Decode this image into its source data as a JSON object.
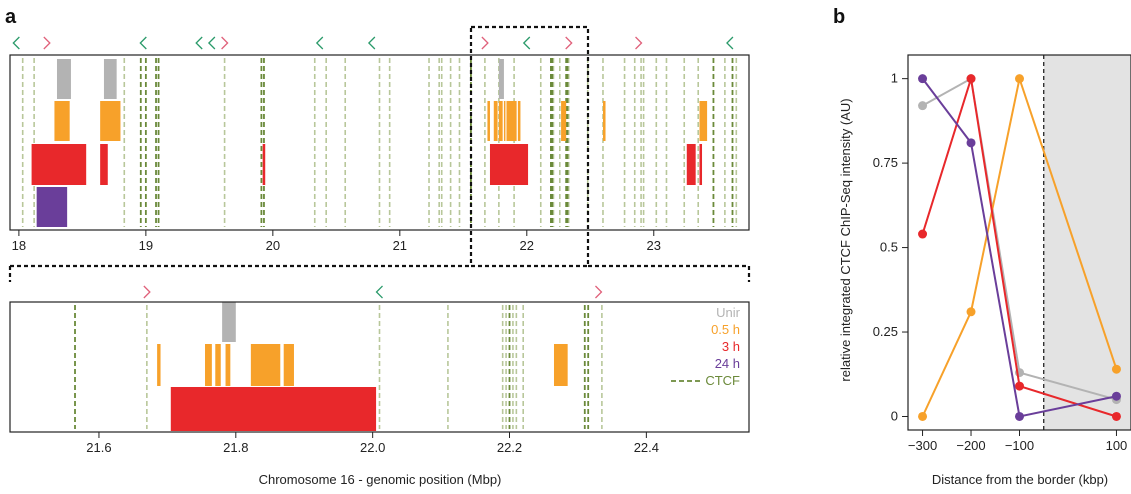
{
  "panel_labels": [
    "a",
    "b"
  ],
  "colors": {
    "unir": "#b3b3b3",
    "h05": "#f7a12a",
    "h3": "#e8282b",
    "h24": "#6a3e9a",
    "ctcf": "#6b8a3a",
    "ctcf_light": "#b8c79a",
    "arrow_left": "#2a9a6a",
    "arrow_right": "#e0607a",
    "shade": "#e3e3e3"
  },
  "chart_data": [
    {
      "type": "track",
      "panel": "a-top",
      "xlabel": "",
      "xlim": [
        17.93,
        23.75
      ],
      "xticks": [
        "18",
        "19",
        "20",
        "21",
        "22",
        "23"
      ],
      "arrows": [
        {
          "pos": 17.98,
          "dir": "left"
        },
        {
          "pos": 18.22,
          "dir": "right"
        },
        {
          "pos": 18.98,
          "dir": "left"
        },
        {
          "pos": 19.42,
          "dir": "left"
        },
        {
          "pos": 19.52,
          "dir": "left"
        },
        {
          "pos": 19.62,
          "dir": "right"
        },
        {
          "pos": 20.37,
          "dir": "left"
        },
        {
          "pos": 20.78,
          "dir": "left"
        },
        {
          "pos": 21.67,
          "dir": "right"
        },
        {
          "pos": 22.0,
          "dir": "left"
        },
        {
          "pos": 22.33,
          "dir": "right"
        },
        {
          "pos": 22.88,
          "dir": "right"
        },
        {
          "pos": 23.6,
          "dir": "left"
        }
      ],
      "ctcf_strong": [
        18.96,
        19.0,
        19.08,
        19.1,
        19.91,
        19.93,
        21.56,
        22.19,
        22.2,
        22.31,
        22.32,
        23.47,
        23.62
      ],
      "ctcf_weak": [
        18.03,
        18.12,
        18.83,
        19.62,
        20.33,
        20.42,
        20.57,
        20.84,
        20.92,
        21.23,
        21.31,
        21.33,
        21.4,
        21.47,
        21.67,
        21.78,
        21.9,
        22.11,
        22.21,
        22.26,
        22.33,
        22.48,
        22.6,
        22.77,
        22.85,
        22.9,
        22.92,
        23.02,
        23.1,
        23.24,
        23.35,
        23.56,
        23.65
      ],
      "tracks": {
        "unir": [
          [
            18.3,
            18.41
          ],
          [
            18.67,
            18.77
          ],
          [
            21.78,
            21.82
          ]
        ],
        "h05": [
          [
            18.28,
            18.4
          ],
          [
            18.64,
            18.8
          ],
          [
            21.69,
            21.71
          ],
          [
            21.74,
            21.77
          ],
          [
            21.78,
            21.81
          ],
          [
            21.82,
            21.83
          ],
          [
            21.84,
            21.92
          ],
          [
            21.93,
            21.95
          ],
          [
            22.27,
            22.31
          ],
          [
            22.6,
            22.62
          ],
          [
            23.36,
            23.42
          ]
        ],
        "h3": [
          [
            18.1,
            18.53
          ],
          [
            18.64,
            18.7
          ],
          [
            19.92,
            19.94
          ],
          [
            21.71,
            22.01
          ],
          [
            23.26,
            23.33
          ],
          [
            23.36,
            23.38
          ]
        ],
        "h24": [
          [
            18.14,
            18.38
          ]
        ]
      }
    },
    {
      "type": "track",
      "panel": "a-zoom",
      "xlabel": "Chromosome 16 - genomic position (Mbp)",
      "xlim": [
        21.47,
        22.55
      ],
      "xticks": [
        "21.6",
        "21.8",
        "22.0",
        "22.2",
        "22.4"
      ],
      "arrows": [
        {
          "pos": 21.67,
          "dir": "right"
        },
        {
          "pos": 22.01,
          "dir": "left"
        },
        {
          "pos": 22.33,
          "dir": "right"
        }
      ],
      "ctcf_strong": [
        21.565,
        22.2,
        22.31,
        22.315
      ],
      "ctcf_weak": [
        21.67,
        22.01,
        22.11,
        22.19,
        22.195,
        22.205,
        22.21,
        22.22,
        22.335
      ],
      "tracks": {
        "unir": [
          [
            21.78,
            21.8
          ]
        ],
        "h05": [
          [
            21.685,
            21.69
          ],
          [
            21.755,
            21.765
          ],
          [
            21.77,
            21.778
          ],
          [
            21.785,
            21.792
          ],
          [
            21.822,
            21.865
          ],
          [
            21.87,
            21.885
          ],
          [
            22.265,
            22.285
          ]
        ],
        "h3": [
          [
            21.705,
            22.005
          ]
        ],
        "h24": []
      },
      "legend": [
        {
          "label": "Unir",
          "key": "unir"
        },
        {
          "label": "0.5 h",
          "key": "h05"
        },
        {
          "label": "3 h",
          "key": "h3"
        },
        {
          "label": "24 h",
          "key": "h24"
        },
        {
          "label": "CTCF",
          "key": "ctcf"
        }
      ]
    },
    {
      "type": "line",
      "panel": "b",
      "xlabel": "Distance from the border (kbp)",
      "ylabel": "relative integrated CTCF ChIP-Seq intensity (AU)",
      "xlim": [
        -330,
        130
      ],
      "ylim": [
        -0.04,
        1.07
      ],
      "xticks": [
        "-300",
        "-200",
        "-100",
        "100"
      ],
      "xtick_values": [
        -300,
        -200,
        -100,
        100
      ],
      "yticks": [
        "0",
        "0.25",
        "0.5",
        "0.75",
        "1"
      ],
      "ytick_values": [
        0,
        0.25,
        0.5,
        0.75,
        1
      ],
      "border": -50,
      "x": [
        -300,
        -200,
        -100,
        100
      ],
      "series": [
        {
          "key": "unir",
          "values": [
            0.92,
            1.0,
            0.13,
            0.05
          ]
        },
        {
          "key": "h05",
          "values": [
            0.0,
            0.31,
            1.0,
            0.14
          ]
        },
        {
          "key": "h3",
          "values": [
            0.54,
            1.0,
            0.09,
            0.0
          ]
        },
        {
          "key": "h24",
          "values": [
            1.0,
            0.81,
            0.0,
            0.06
          ]
        }
      ]
    }
  ]
}
